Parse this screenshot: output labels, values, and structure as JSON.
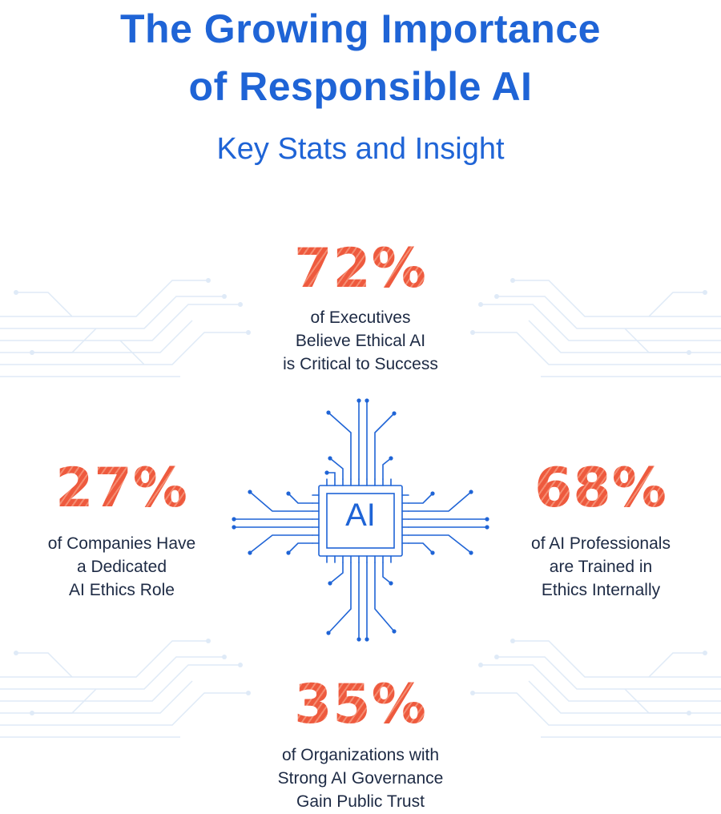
{
  "title": {
    "line1": "The Growing Importance",
    "line2": "of Responsible AI"
  },
  "subtitle": "Key Stats and Insight",
  "chip": {
    "label": "AI",
    "icon": "ai-chip-icon"
  },
  "stats": {
    "top": {
      "value": "72%",
      "lines": [
        "of Executives",
        "Believe Ethical AI",
        "is Critical to Success"
      ]
    },
    "left": {
      "value": "27%",
      "lines": [
        "of Companies Have",
        "a Dedicated",
        "AI Ethics Role"
      ]
    },
    "right": {
      "value": "68%",
      "lines": [
        "of AI Professionals",
        "are Trained in",
        "Ethics Internally"
      ]
    },
    "bottom": {
      "value": "35%",
      "lines": [
        "of Organizations with",
        "Strong AI Governance",
        "Gain Public Trust"
      ]
    }
  },
  "colors": {
    "accent_blue": "#1f64d6",
    "stat_orange": "#ee5a3e",
    "body_text": "#1d2a44",
    "circuit_light": "#dbe8f7"
  }
}
